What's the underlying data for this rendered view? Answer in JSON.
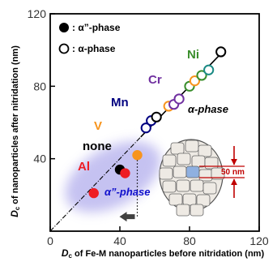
{
  "chart_data": {
    "type": "scatter",
    "xlabel_symbol": "D",
    "xlabel_sub": "c",
    "xlabel_rest": " of Fe-M nanoparticles before nitridation (nm)",
    "ylabel_symbol": "D",
    "ylabel_sub": "c",
    "ylabel_rest": " of nanoparticles after nitridation (nm)",
    "xlim": [
      0,
      120
    ],
    "ylim": [
      0,
      120
    ],
    "x_ticks": [
      0,
      40,
      80,
      120
    ],
    "y_ticks": [
      40,
      80,
      120
    ],
    "x_tick_labels": [
      "0",
      "40",
      "80",
      "120"
    ],
    "y_tick_labels": [
      "40",
      "80",
      "120"
    ],
    "legend": [
      {
        "label": "α”-phase",
        "marker": "filled"
      },
      {
        "label": "α-phase",
        "marker": "open"
      }
    ],
    "series": [
      {
        "phase": "alpha-double-prime",
        "marker": "filled",
        "points": [
          {
            "x": 25,
            "y": 21,
            "color": "#ee1c24"
          },
          {
            "x": 40,
            "y": 34,
            "color": "#000000"
          },
          {
            "x": 43,
            "y": 32,
            "color": "#ee1c24"
          },
          {
            "x": 50,
            "y": 42,
            "color": "#f7941d"
          }
        ]
      },
      {
        "phase": "alpha",
        "marker": "open",
        "points": [
          {
            "x": 55,
            "y": 57,
            "color": "#000080"
          },
          {
            "x": 58,
            "y": 61,
            "color": "#000080"
          },
          {
            "x": 61,
            "y": 63,
            "color": "#000000"
          },
          {
            "x": 68,
            "y": 69,
            "color": "#f7941d"
          },
          {
            "x": 71,
            "y": 70,
            "color": "#7030a0"
          },
          {
            "x": 74,
            "y": 73,
            "color": "#7030a0"
          },
          {
            "x": 80,
            "y": 80,
            "color": "#3a8e2c"
          },
          {
            "x": 83,
            "y": 83,
            "color": "#f7941d"
          },
          {
            "x": 87,
            "y": 86,
            "color": "#3a8e2c"
          },
          {
            "x": 91,
            "y": 89,
            "color": "#1a8a84"
          },
          {
            "x": 98,
            "y": 99,
            "color": "#000000"
          }
        ]
      }
    ],
    "annotations": {
      "elements": [
        {
          "text": "Al",
          "color": "#ee1c24"
        },
        {
          "text": "none",
          "color": "#000000"
        },
        {
          "text": "V",
          "color": "#f7941d"
        },
        {
          "text": "Mn",
          "color": "#000080"
        },
        {
          "text": "Cr",
          "color": "#7030a0"
        },
        {
          "text": "Ni",
          "color": "#3a8e2c"
        }
      ],
      "phase_alpha": "α-phase",
      "phase_alpha_dp": "α”-phase",
      "scale_bar": "50 nm"
    }
  },
  "colors": {
    "grain_fill": "#eeeae4",
    "grain_highlight": "#8fb0e0",
    "ellipse": "#b7b3ee",
    "arrow": "#404040",
    "scale": "#c00000"
  }
}
